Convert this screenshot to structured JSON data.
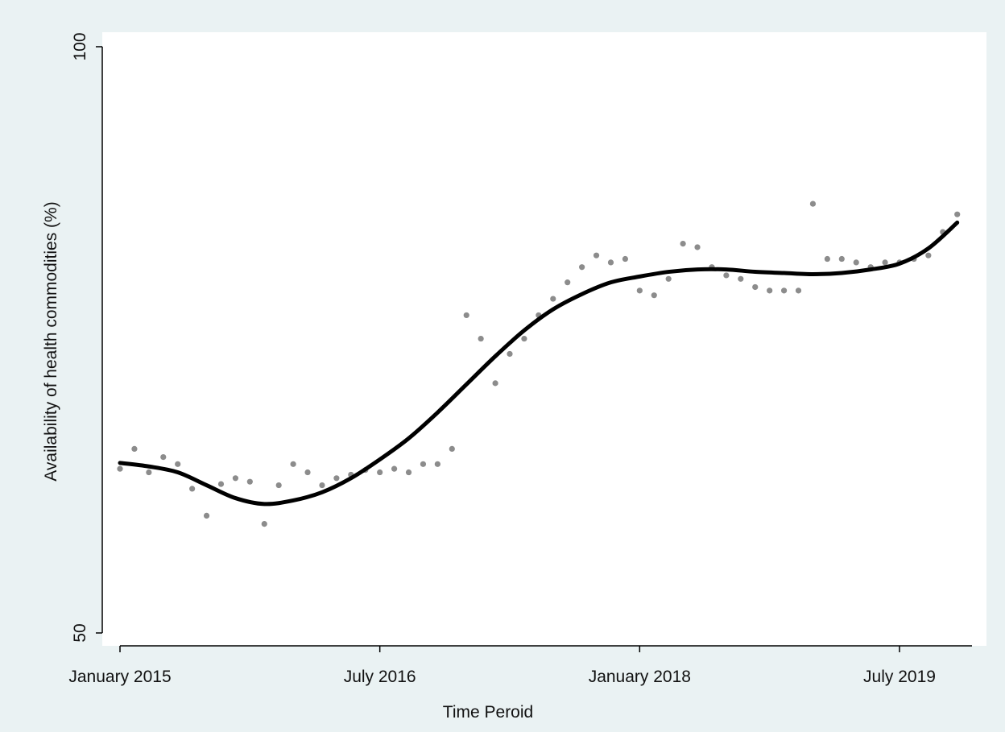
{
  "chart_data": {
    "type": "scatter",
    "title": "",
    "xlabel": "Time Peroid",
    "ylabel": "Availability of health commodities (%)",
    "ylim": [
      50,
      100
    ],
    "xlim": [
      "2014-12",
      "2019-12"
    ],
    "yticks": [
      50,
      100
    ],
    "xticks": [
      {
        "x": "2015-01",
        "label": "January 2015"
      },
      {
        "x": "2016-07",
        "label": "July 2016"
      },
      {
        "x": "2018-01",
        "label": "January 2018"
      },
      {
        "x": "2019-07",
        "label": "July 2019"
      }
    ],
    "grid": false,
    "legend": "none",
    "series": [
      {
        "kind": "points",
        "color": "#8c8c8c",
        "x": [
          "2015-01",
          "2015-02",
          "2015-03",
          "2015-04",
          "2015-05",
          "2015-06",
          "2015-07",
          "2015-08",
          "2015-09",
          "2015-10",
          "2015-11",
          "2015-12",
          "2016-01",
          "2016-02",
          "2016-03",
          "2016-04",
          "2016-05",
          "2016-06",
          "2016-07",
          "2016-08",
          "2016-09",
          "2016-10",
          "2016-11",
          "2016-12",
          "2017-01",
          "2017-02",
          "2017-03",
          "2017-04",
          "2017-05",
          "2017-06",
          "2017-07",
          "2017-08",
          "2017-09",
          "2017-10",
          "2017-11",
          "2017-12",
          "2018-01",
          "2018-02",
          "2018-03",
          "2018-04",
          "2018-05",
          "2018-06",
          "2018-07",
          "2018-08",
          "2018-09",
          "2018-10",
          "2018-11",
          "2018-12",
          "2019-01",
          "2019-02",
          "2019-03",
          "2019-04",
          "2019-05",
          "2019-06",
          "2019-07",
          "2019-08",
          "2019-09",
          "2019-10",
          "2019-11"
        ],
        "y": [
          64.0,
          65.7,
          63.7,
          65.0,
          64.4,
          62.3,
          60.0,
          62.7,
          63.2,
          62.9,
          59.3,
          62.6,
          64.4,
          63.7,
          62.6,
          63.2,
          63.5,
          63.9,
          63.7,
          64.0,
          63.7,
          64.4,
          64.4,
          65.7,
          77.1,
          75.1,
          71.3,
          73.8,
          75.1,
          77.1,
          78.5,
          79.9,
          81.2,
          82.2,
          81.6,
          81.9,
          79.2,
          78.8,
          80.2,
          83.2,
          82.9,
          81.2,
          80.5,
          80.2,
          79.5,
          79.2,
          79.2,
          79.2,
          86.6,
          81.9,
          81.9,
          81.6,
          81.2,
          81.6,
          81.6,
          81.9,
          82.2,
          84.2,
          85.7
        ]
      },
      {
        "kind": "fitted-line",
        "color": "#000000",
        "x": [
          "2015-01",
          "2015-03",
          "2015-05",
          "2015-07",
          "2015-09",
          "2015-11",
          "2016-01",
          "2016-03",
          "2016-05",
          "2016-07",
          "2016-09",
          "2016-11",
          "2017-01",
          "2017-03",
          "2017-05",
          "2017-07",
          "2017-09",
          "2017-11",
          "2018-01",
          "2018-03",
          "2018-05",
          "2018-07",
          "2018-09",
          "2018-11",
          "2019-01",
          "2019-03",
          "2019-05",
          "2019-07",
          "2019-09",
          "2019-11"
        ],
        "y": [
          64.5,
          64.2,
          63.7,
          62.6,
          61.5,
          61.0,
          61.3,
          62.0,
          63.2,
          64.8,
          66.6,
          68.8,
          71.2,
          73.6,
          75.8,
          77.6,
          78.9,
          79.9,
          80.4,
          80.8,
          81.0,
          81.0,
          80.8,
          80.7,
          80.6,
          80.7,
          81.0,
          81.5,
          82.8,
          85.0
        ]
      }
    ]
  }
}
